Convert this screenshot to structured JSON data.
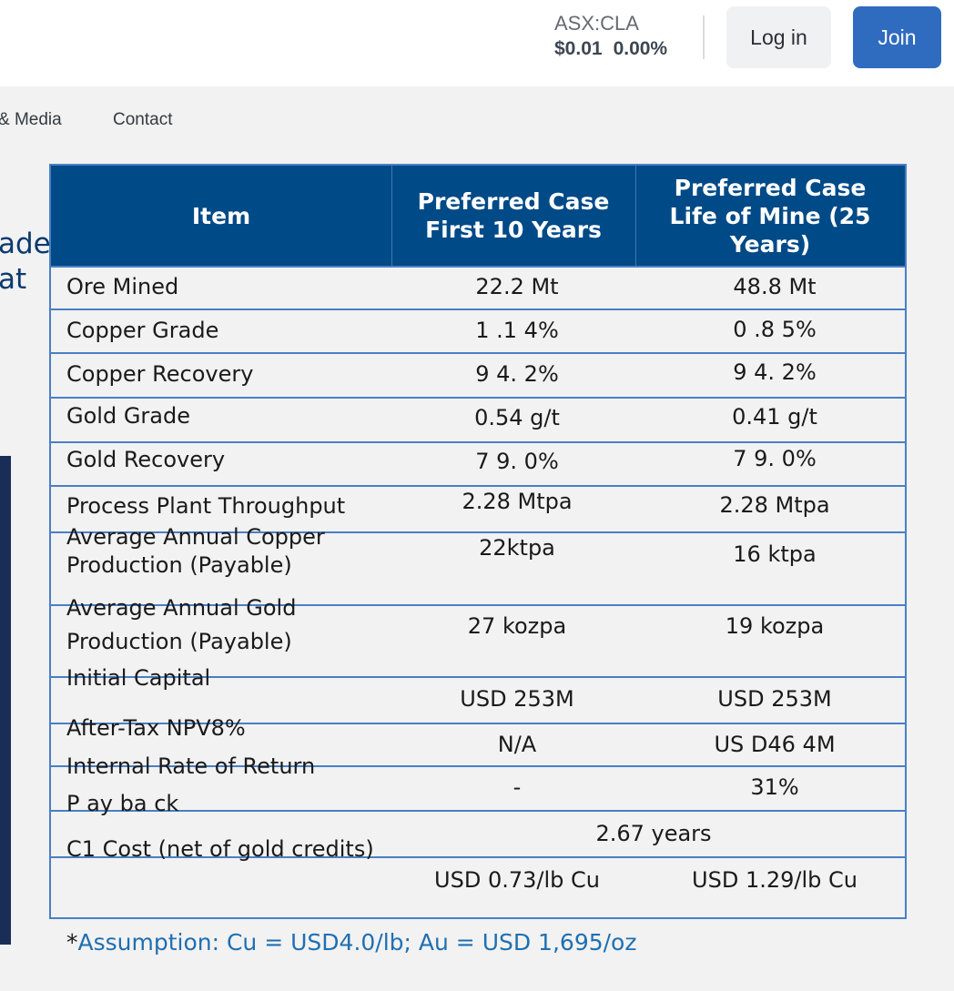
{
  "header": {
    "ticker_symbol": "ASX:CLA",
    "price": "$0.01",
    "change": "0.00%",
    "login_label": "Log in",
    "join_label": "Join"
  },
  "nav": {
    "items": [
      "& Media",
      "Contact"
    ]
  },
  "left_text": [
    "ade",
    "at"
  ],
  "table": {
    "headers": {
      "item": "Item",
      "col1": "Preferred Case First 10 Years",
      "col2": "Preferred Case Life of Mine (25 Years)"
    },
    "rows": [
      {
        "item": "Ore Mined",
        "first10": "22.2 Mt",
        "lom": "48.8 Mt"
      },
      {
        "item": "Copper Grade",
        "first10": "1 .1 4%",
        "lom": "0 .8 5%"
      },
      {
        "item": "Copper Recovery",
        "first10": "9 4. 2%",
        "lom": "9 4. 2%"
      },
      {
        "item": "Gold Grade",
        "first10": "0.54 g/t",
        "lom": "0.41 g/t"
      },
      {
        "item": "Gold Recovery",
        "first10": "7 9. 0%",
        "lom": "7 9. 0%"
      },
      {
        "item": "Process Plant Throughput",
        "first10": "2.28 Mtpa",
        "lom": "2.28 Mtpa"
      },
      {
        "item_line1": "Average Annual Copper",
        "item_line2": "Production (Payable)",
        "first10": "22ktpa",
        "lom": "16 ktpa"
      },
      {
        "item_line1": "Average Annual Gold",
        "item_line2": "Production (Payable)",
        "first10": "27 kozpa",
        "lom": "19 kozpa"
      },
      {
        "item": "Initial Capital",
        "first10": "USD 253M",
        "lom": "USD 253M"
      },
      {
        "item": "After-Tax NPV8%",
        "first10": "N/A",
        "lom": "US D46 4M"
      },
      {
        "item": "Internal Rate of Return",
        "first10": "-",
        "lom": "31%"
      },
      {
        "item": "P ay ba ck",
        "merged": "2.67 years"
      },
      {
        "item": "C1 Cost (net of gold credits)",
        "first10": "USD 0.73/lb Cu",
        "lom": "USD 1.29/lb Cu"
      }
    ]
  },
  "footnote": {
    "star": "*",
    "text": "Assumption: Cu = USD4.0/lb; Au = USD 1,695/oz"
  }
}
